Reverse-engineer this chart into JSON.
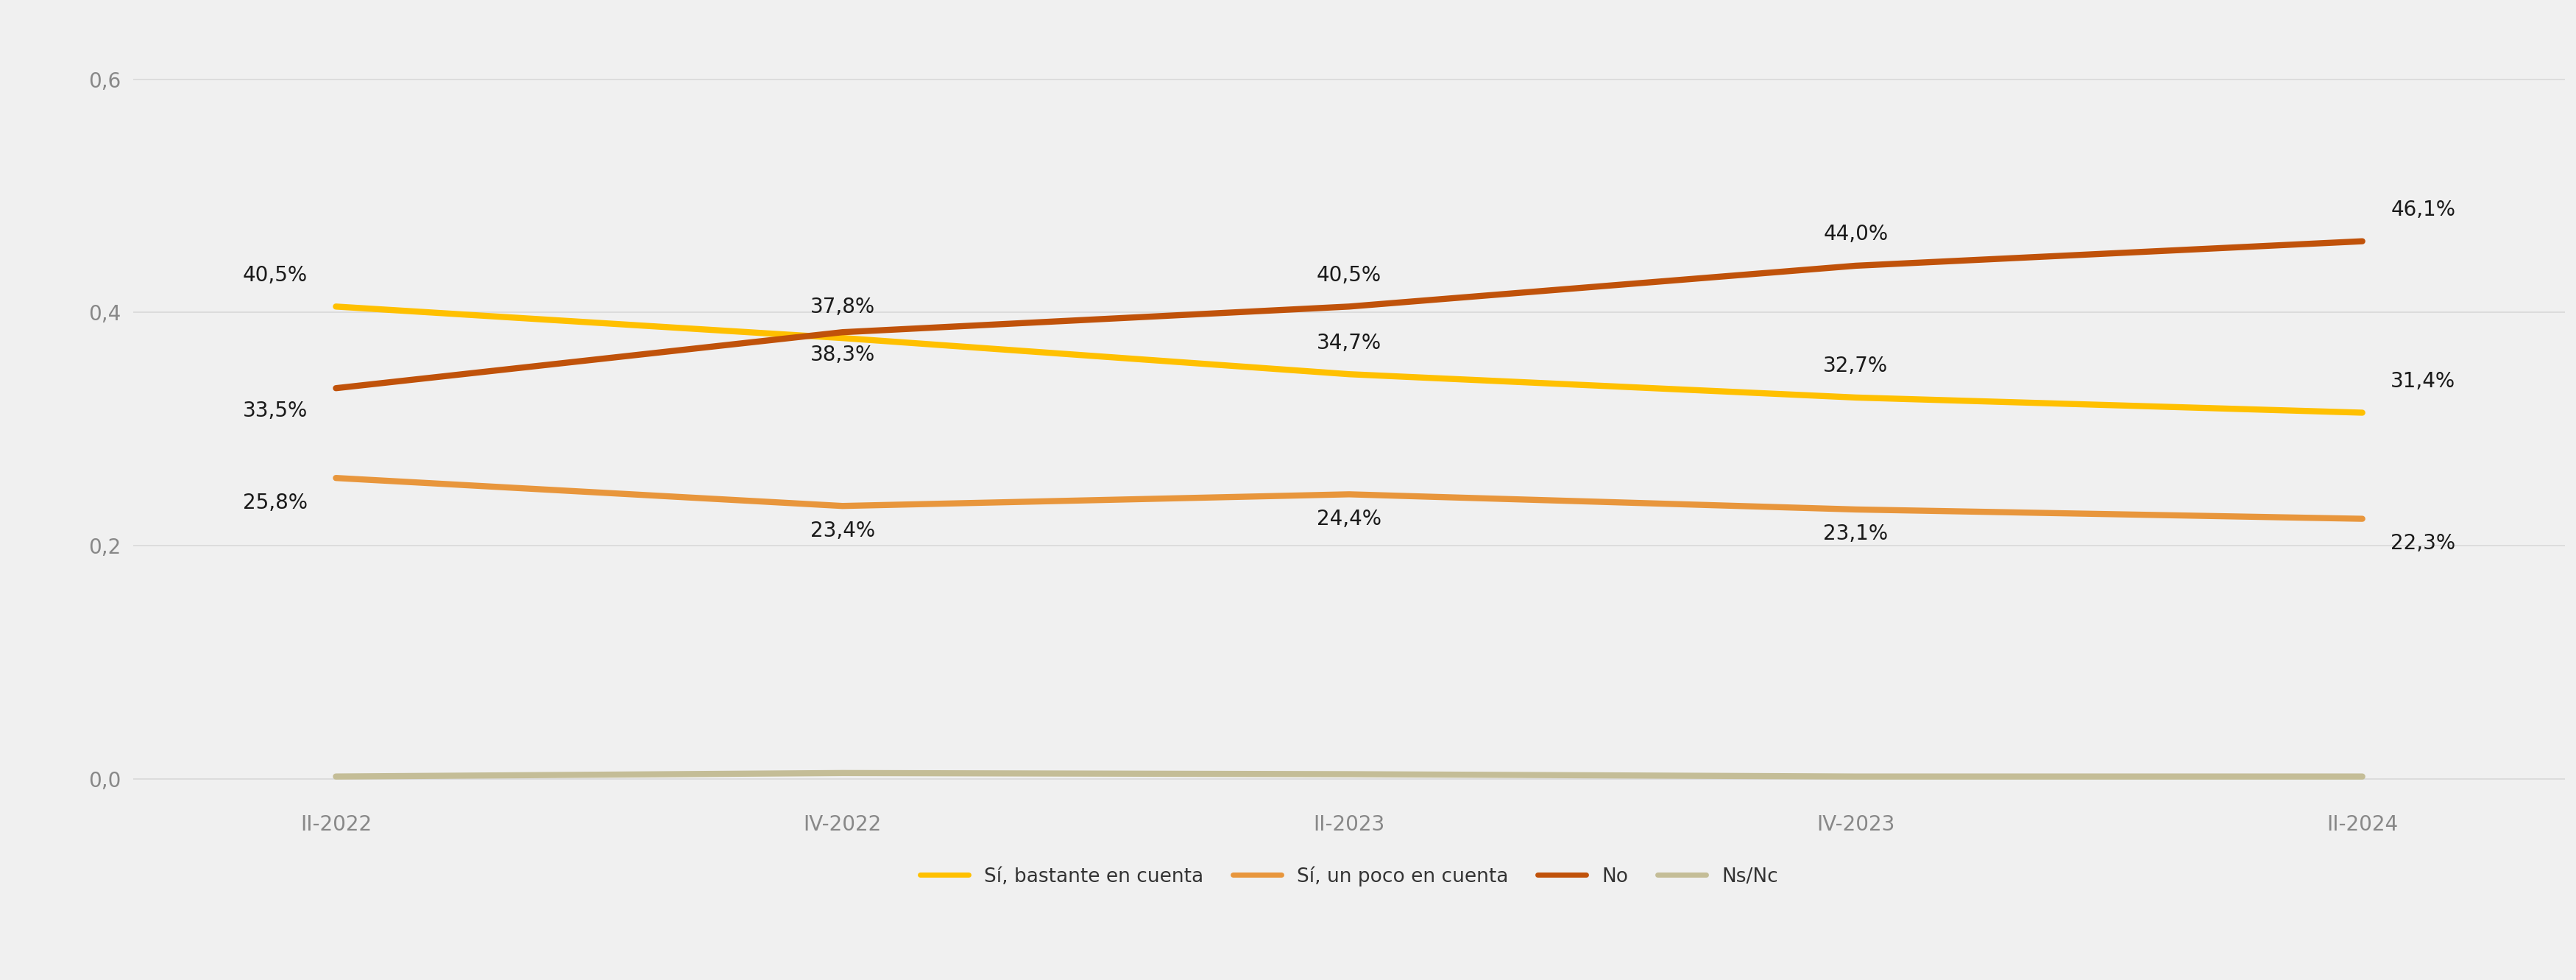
{
  "x_labels": [
    "II-2022",
    "IV-2022",
    "II-2023",
    "IV-2023",
    "II-2024"
  ],
  "series": [
    {
      "label": "Sí, bastante en cuenta",
      "values": [
        0.405,
        0.378,
        0.347,
        0.327,
        0.314
      ],
      "annotations": [
        "40,5%",
        "37,8%",
        "34,7%",
        "32,7%",
        "31,4%"
      ],
      "color": "#FFC000",
      "linewidth": 6.0
    },
    {
      "label": "Sí, un poco en cuenta",
      "values": [
        0.258,
        0.234,
        0.244,
        0.231,
        0.223
      ],
      "annotations": [
        "25,8%",
        "23,4%",
        "24,4%",
        "23,1%",
        "22,3%"
      ],
      "color": "#E8963C",
      "linewidth": 6.0
    },
    {
      "label": "No",
      "values": [
        0.335,
        0.383,
        0.405,
        0.44,
        0.461
      ],
      "annotations": [
        "33,5%",
        "38,3%",
        "40,5%",
        "44,0%",
        "46,1%"
      ],
      "color": "#C0520A",
      "linewidth": 6.0
    },
    {
      "label": "Ns/Nc",
      "values": [
        0.002,
        0.005,
        0.004,
        0.002,
        0.002
      ],
      "annotations": [
        "",
        "",
        "",
        "",
        ""
      ],
      "color": "#C4BD97",
      "linewidth": 6.0
    }
  ],
  "ylim": [
    -0.02,
    0.65
  ],
  "yticks": [
    0.0,
    0.2,
    0.4,
    0.6
  ],
  "ytick_labels": [
    "0,0",
    "0,2",
    "0,4",
    "0,6"
  ],
  "background_color": "#F0F0F0",
  "grid_color": "#D8D8D8",
  "annotation_fontsize": 20,
  "tick_fontsize": 20,
  "legend_fontsize": 19
}
